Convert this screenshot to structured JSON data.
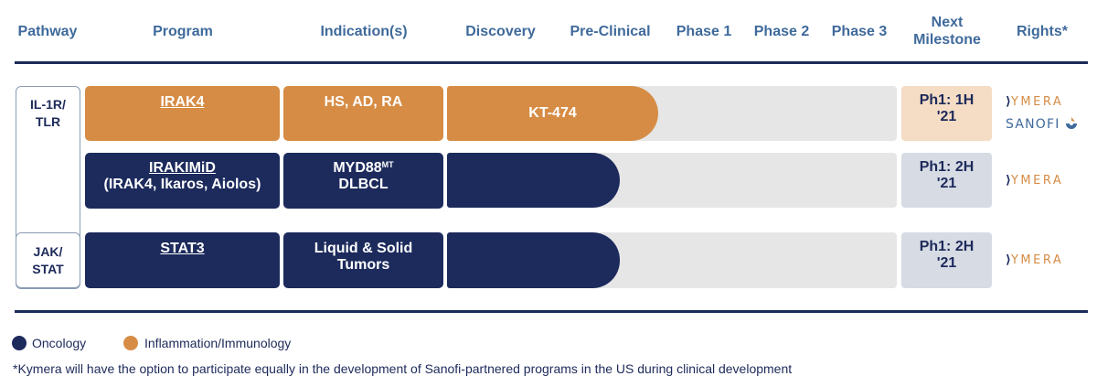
{
  "header": {
    "pathway": "Pathway",
    "program": "Program",
    "indications": "Indication(s)",
    "discovery": "Discovery",
    "preclinical": "Pre-Clinical",
    "phase1": "Phase 1",
    "phase2": "Phase 2",
    "phase3": "Phase 3",
    "next_milestone": "Next\nMilestone",
    "rights": "Rights*"
  },
  "pathways": [
    {
      "label": "IL-1R/\nTLR"
    },
    {
      "label": "JAK/\nSTAT"
    }
  ],
  "rows": [
    {
      "program_line1": "IRAK4",
      "program_line2": "",
      "indication_line1": "HS, AD, RA",
      "indication_sup": "",
      "indication_line2": "",
      "bar_label": "KT-474",
      "milestone_line1": "Ph1: 1H",
      "milestone_line2": "'21",
      "rights": [
        "KYMERA",
        "SANOFI"
      ],
      "category": "Inflammation/Immunology"
    },
    {
      "program_line1": "IRAKIMiD",
      "program_line2": "(IRAK4, Ikaros, Aiolos)",
      "indication_line1": "MYD88",
      "indication_sup": "MT",
      "indication_line2": "DLBCL",
      "bar_label": "",
      "milestone_line1": "Ph1: 2H",
      "milestone_line2": "'21",
      "rights": [
        "KYMERA"
      ],
      "category": "Oncology"
    },
    {
      "program_line1": "STAT3",
      "program_line2": "",
      "indication_line1": "Liquid & Solid",
      "indication_sup": "",
      "indication_line2": "Tumors",
      "bar_label": "",
      "milestone_line1": "Ph1: 2H",
      "milestone_line2": "'21",
      "rights": [
        "KYMERA"
      ],
      "category": "Oncology"
    }
  ],
  "legend": [
    {
      "label": "Oncology",
      "color": "#1c2a5c"
    },
    {
      "label": "Inflammation/Immunology",
      "color": "#d68c45"
    }
  ],
  "footnote": "*Kymera will have the option to participate equally in the development of Sanofi-partnered programs in the US during clinical development",
  "colors": {
    "navy": "#1c2a5c",
    "orange": "#d68c45",
    "header_text": "#3f6a9b"
  }
}
